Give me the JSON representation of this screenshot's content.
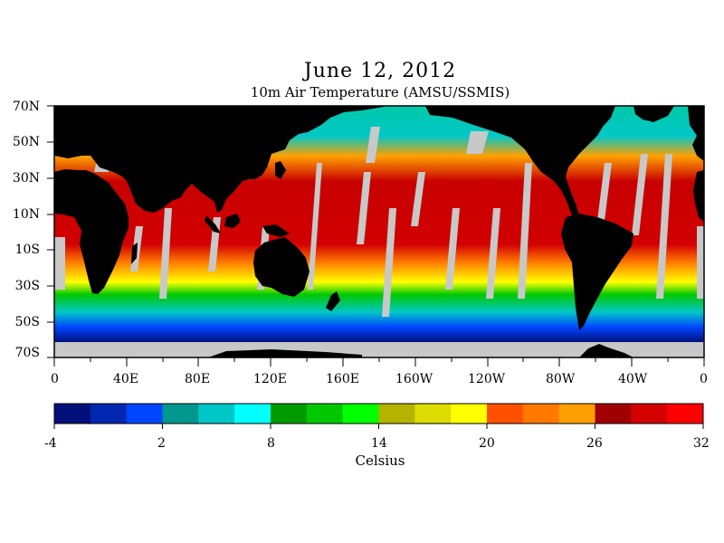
{
  "title": "June 12, 2012",
  "subtitle": "10m Air Temperature (AMSU/SSMIS)",
  "map": {
    "projection": "equirectangular",
    "lon_range": [
      0,
      360
    ],
    "lat_range": [
      -70,
      70
    ],
    "lat_ticks": [
      "70N",
      "50N",
      "30N",
      "10N",
      "10S",
      "30S",
      "50S",
      "70S"
    ],
    "lon_ticks": [
      "0",
      "40E",
      "80E",
      "120E",
      "160E",
      "160W",
      "120W",
      "80W",
      "40W",
      "0"
    ],
    "colors": {
      "land": "#000000",
      "no_data": "#c8c8c8",
      "ocean_warm": "#d80000"
    }
  },
  "colorbar": {
    "title": "Celsius",
    "tick_labels": [
      "-4",
      "2",
      "8",
      "14",
      "20",
      "26",
      "32"
    ],
    "min": -4,
    "max": 32,
    "colors": [
      "#000f7a",
      "#0027b0",
      "#0045ff",
      "#00978f",
      "#00c8c8",
      "#00ffff",
      "#009a00",
      "#00c800",
      "#00ff00",
      "#b4b400",
      "#dcdc00",
      "#ffff00",
      "#ff5000",
      "#ff7800",
      "#ffa000",
      "#a00000",
      "#d20000",
      "#ff0000"
    ]
  }
}
